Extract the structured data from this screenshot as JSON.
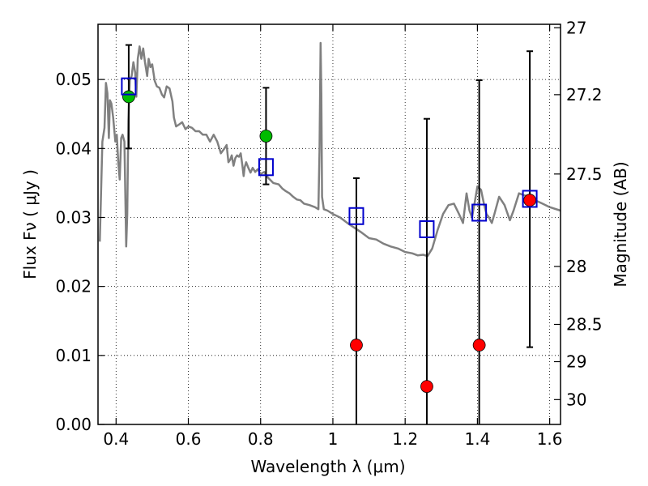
{
  "chart_data": {
    "type": "scatter",
    "xlabel": "Wavelength  λ (μm)",
    "ylabel": "Flux  Fν  ( μJy )",
    "ylabel_right": "Magnitude (AB)",
    "xlim": [
      0.35,
      1.63
    ],
    "ylim": [
      0.0,
      0.058
    ],
    "grid": true,
    "x_ticks": [
      0.4,
      0.6,
      0.8,
      1.0,
      1.2,
      1.4,
      1.6
    ],
    "x_tick_labels": [
      "0.4",
      "0.6",
      "0.8",
      "1",
      "1.2",
      "1.4",
      "1.6"
    ],
    "y_ticks": [
      0.0,
      0.01,
      0.02,
      0.03,
      0.04,
      0.05
    ],
    "y_tick_labels": [
      "0.00",
      "0.01",
      "0.02",
      "0.03",
      "0.04",
      "0.05"
    ],
    "right_ticks": [
      {
        "label": "27",
        "flux": 0.0575
      },
      {
        "label": "27.2",
        "flux": 0.0478
      },
      {
        "label": "27.5",
        "flux": 0.0363
      },
      {
        "label": "28",
        "flux": 0.0229
      },
      {
        "label": "28.5",
        "flux": 0.0145
      },
      {
        "label": "29",
        "flux": 0.0091
      },
      {
        "label": "30",
        "flux": 0.0036
      }
    ],
    "series": [
      {
        "name": "model SED",
        "kind": "line",
        "color": "#808080",
        "points": [
          [
            0.355,
            0.0265
          ],
          [
            0.362,
            0.041
          ],
          [
            0.368,
            0.043
          ],
          [
            0.372,
            0.0495
          ],
          [
            0.376,
            0.048
          ],
          [
            0.38,
            0.0415
          ],
          [
            0.383,
            0.047
          ],
          [
            0.387,
            0.0465
          ],
          [
            0.392,
            0.0445
          ],
          [
            0.398,
            0.041
          ],
          [
            0.402,
            0.042
          ],
          [
            0.406,
            0.038
          ],
          [
            0.41,
            0.0355
          ],
          [
            0.414,
            0.0415
          ],
          [
            0.418,
            0.042
          ],
          [
            0.423,
            0.041
          ],
          [
            0.426,
            0.032
          ],
          [
            0.428,
            0.0258
          ],
          [
            0.431,
            0.0305
          ],
          [
            0.434,
            0.044
          ],
          [
            0.438,
            0.05
          ],
          [
            0.443,
            0.0505
          ],
          [
            0.448,
            0.0525
          ],
          [
            0.453,
            0.051
          ],
          [
            0.456,
            0.0475
          ],
          [
            0.46,
            0.053
          ],
          [
            0.465,
            0.0548
          ],
          [
            0.47,
            0.053
          ],
          [
            0.475,
            0.0545
          ],
          [
            0.48,
            0.0525
          ],
          [
            0.486,
            0.0505
          ],
          [
            0.49,
            0.053
          ],
          [
            0.495,
            0.0518
          ],
          [
            0.5,
            0.0522
          ],
          [
            0.507,
            0.0498
          ],
          [
            0.513,
            0.049
          ],
          [
            0.52,
            0.0488
          ],
          [
            0.527,
            0.0478
          ],
          [
            0.533,
            0.0474
          ],
          [
            0.54,
            0.049
          ],
          [
            0.548,
            0.0487
          ],
          [
            0.556,
            0.0468
          ],
          [
            0.56,
            0.0445
          ],
          [
            0.566,
            0.0432
          ],
          [
            0.575,
            0.0435
          ],
          [
            0.583,
            0.0438
          ],
          [
            0.592,
            0.0428
          ],
          [
            0.6,
            0.0432
          ],
          [
            0.61,
            0.043
          ],
          [
            0.62,
            0.0425
          ],
          [
            0.63,
            0.0425
          ],
          [
            0.64,
            0.042
          ],
          [
            0.65,
            0.042
          ],
          [
            0.66,
            0.041
          ],
          [
            0.67,
            0.042
          ],
          [
            0.68,
            0.041
          ],
          [
            0.69,
            0.0393
          ],
          [
            0.7,
            0.04
          ],
          [
            0.706,
            0.0405
          ],
          [
            0.711,
            0.038
          ],
          [
            0.716,
            0.0384
          ],
          [
            0.72,
            0.039
          ],
          [
            0.725,
            0.0375
          ],
          [
            0.73,
            0.0386
          ],
          [
            0.735,
            0.039
          ],
          [
            0.74,
            0.0388
          ],
          [
            0.745,
            0.0393
          ],
          [
            0.75,
            0.0374
          ],
          [
            0.753,
            0.036
          ],
          [
            0.756,
            0.0373
          ],
          [
            0.76,
            0.038
          ],
          [
            0.766,
            0.0372
          ],
          [
            0.772,
            0.0365
          ],
          [
            0.778,
            0.0372
          ],
          [
            0.785,
            0.0366
          ],
          [
            0.792,
            0.037
          ],
          [
            0.8,
            0.0363
          ],
          [
            0.81,
            0.0366
          ],
          [
            0.82,
            0.0358
          ],
          [
            0.835,
            0.035
          ],
          [
            0.85,
            0.0348
          ],
          [
            0.86,
            0.0342
          ],
          [
            0.87,
            0.0338
          ],
          [
            0.88,
            0.0335
          ],
          [
            0.89,
            0.033
          ],
          [
            0.9,
            0.0326
          ],
          [
            0.91,
            0.0325
          ],
          [
            0.92,
            0.032
          ],
          [
            0.935,
            0.0318
          ],
          [
            0.95,
            0.0315
          ],
          [
            0.96,
            0.0312
          ],
          [
            0.963,
            0.04
          ],
          [
            0.966,
            0.0553
          ],
          [
            0.968,
            0.048
          ],
          [
            0.97,
            0.033
          ],
          [
            0.975,
            0.0312
          ],
          [
            0.985,
            0.031
          ],
          [
            1.0,
            0.0305
          ],
          [
            1.02,
            0.03
          ],
          [
            1.04,
            0.0292
          ],
          [
            1.06,
            0.0285
          ],
          [
            1.08,
            0.0278
          ],
          [
            1.1,
            0.027
          ],
          [
            1.12,
            0.0268
          ],
          [
            1.14,
            0.0262
          ],
          [
            1.16,
            0.0258
          ],
          [
            1.18,
            0.0255
          ],
          [
            1.2,
            0.025
          ],
          [
            1.22,
            0.0248
          ],
          [
            1.235,
            0.0245
          ],
          [
            1.25,
            0.0246
          ],
          [
            1.262,
            0.0244
          ],
          [
            1.275,
            0.0255
          ],
          [
            1.29,
            0.0282
          ],
          [
            1.305,
            0.0305
          ],
          [
            1.32,
            0.0318
          ],
          [
            1.335,
            0.032
          ],
          [
            1.35,
            0.0304
          ],
          [
            1.36,
            0.0292
          ],
          [
            1.37,
            0.0335
          ],
          [
            1.378,
            0.031
          ],
          [
            1.385,
            0.03
          ],
          [
            1.392,
            0.032
          ],
          [
            1.4,
            0.0345
          ],
          [
            1.41,
            0.034
          ],
          [
            1.418,
            0.032
          ],
          [
            1.425,
            0.0305
          ],
          [
            1.432,
            0.03
          ],
          [
            1.44,
            0.0292
          ],
          [
            1.447,
            0.0305
          ],
          [
            1.46,
            0.033
          ],
          [
            1.475,
            0.0318
          ],
          [
            1.49,
            0.0296
          ],
          [
            1.5,
            0.031
          ],
          [
            1.515,
            0.0335
          ],
          [
            1.53,
            0.0332
          ],
          [
            1.545,
            0.033
          ],
          [
            1.56,
            0.0325
          ],
          [
            1.58,
            0.032
          ],
          [
            1.6,
            0.0315
          ],
          [
            1.63,
            0.031
          ]
        ]
      },
      {
        "name": "observed red",
        "kind": "points",
        "marker": "circle",
        "color": "#ff0000",
        "x": [
          1.065,
          1.26,
          1.405,
          1.545
        ],
        "y": [
          0.0115,
          0.0055,
          0.0115,
          0.0325
        ]
      },
      {
        "name": "observed green",
        "kind": "points",
        "marker": "circle",
        "color": "#00bb00",
        "x": [
          0.435,
          0.815
        ],
        "y": [
          0.0475,
          0.0418
        ]
      },
      {
        "name": "model photometry",
        "kind": "points",
        "marker": "open-square",
        "color": "#0000cc",
        "x": [
          0.435,
          0.815,
          1.065,
          1.26,
          1.405,
          1.545
        ],
        "y": [
          0.049,
          0.0373,
          0.0302,
          0.0283,
          0.0307,
          0.0327
        ]
      },
      {
        "name": "error bars",
        "kind": "errorbars",
        "color": "#000000",
        "x": [
          0.435,
          0.815,
          1.065,
          1.26,
          1.405,
          1.545
        ],
        "low": [
          0.04,
          0.0348,
          0.0,
          0.0,
          0.0,
          0.0112
        ],
        "high": [
          0.055,
          0.0488,
          0.0357,
          0.0443,
          0.0499,
          0.0541
        ]
      }
    ]
  }
}
